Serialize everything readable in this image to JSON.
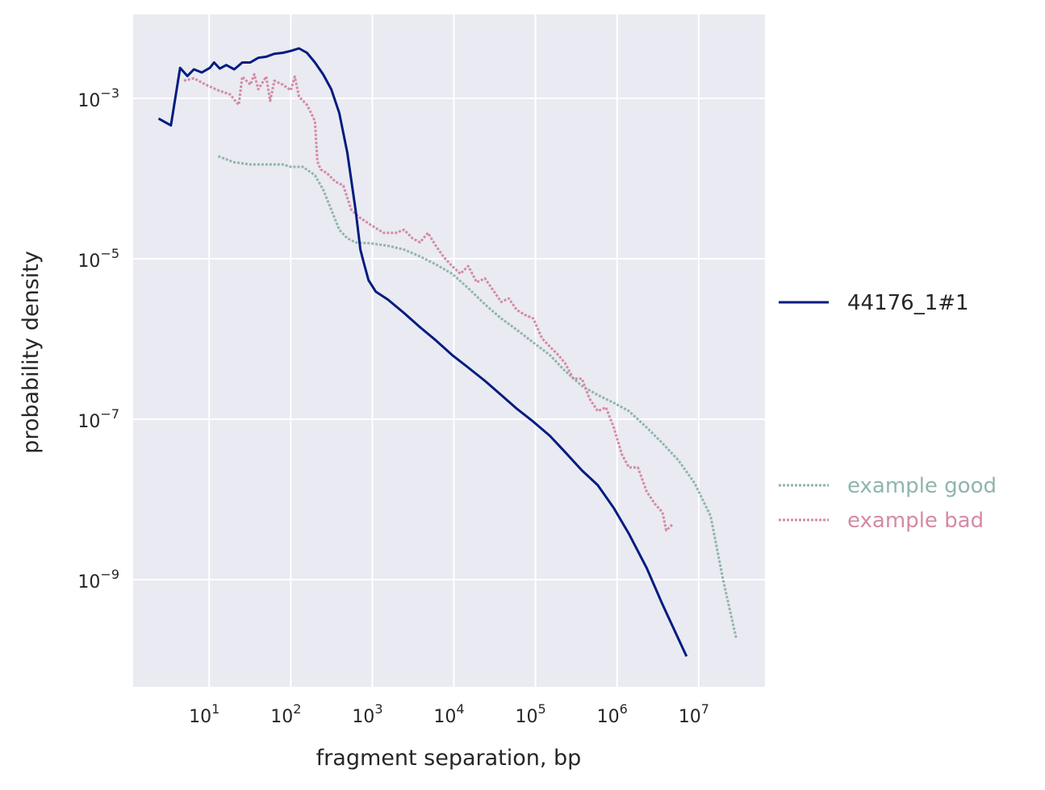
{
  "chart_data": {
    "type": "line",
    "xlabel": "fragment separation, bp",
    "ylabel": "probability density",
    "xscale": "log",
    "yscale": "log",
    "xlim": [
      1.17,
      65000000
    ],
    "ylim": [
      4.6e-11,
      0.0111
    ],
    "grid": true,
    "legend_placement": "right-outside",
    "x_ticks": [
      {
        "base": "10",
        "exp": "1",
        "value": 10
      },
      {
        "base": "10",
        "exp": "2",
        "value": 100
      },
      {
        "base": "10",
        "exp": "3",
        "value": 1000
      },
      {
        "base": "10",
        "exp": "4",
        "value": 10000
      },
      {
        "base": "10",
        "exp": "5",
        "value": 100000
      },
      {
        "base": "10",
        "exp": "6",
        "value": 1000000
      },
      {
        "base": "10",
        "exp": "7",
        "value": 10000000
      }
    ],
    "y_ticks": [
      {
        "base": "10",
        "exp": "−3",
        "value": 0.001
      },
      {
        "base": "10",
        "exp": "−5",
        "value": 1e-05
      },
      {
        "base": "10",
        "exp": "−7",
        "value": 1e-07
      },
      {
        "base": "10",
        "exp": "−9",
        "value": 1e-09
      }
    ],
    "series": [
      {
        "name": "44176_1#1",
        "color": "#001c7f",
        "style": "solid",
        "x": [
          2.4,
          3.4,
          4.4,
          5.4,
          6.5,
          8.1,
          10.2,
          11.5,
          13.5,
          16.2,
          20.3,
          25.5,
          31.9,
          40,
          50,
          63,
          80,
          100,
          126,
          158,
          198,
          249,
          314,
          393,
          494,
          622,
          714,
          782,
          898,
          1100,
          1550,
          2450,
          3840,
          6000,
          9500,
          15000,
          24000,
          38000,
          59000,
          94000,
          150000,
          230000,
          370000,
          580000,
          910000,
          1400000,
          2300000,
          3600000,
          7100000
        ],
        "y": [
          0.00056,
          0.00046,
          0.0024,
          0.0019,
          0.0023,
          0.0021,
          0.0024,
          0.0028,
          0.00235,
          0.0026,
          0.0023,
          0.0028,
          0.0028,
          0.0032,
          0.0033,
          0.0036,
          0.0037,
          0.0039,
          0.0042,
          0.0037,
          0.0028,
          0.002,
          0.0013,
          0.00066,
          0.00021,
          4.1e-05,
          1.3e-05,
          9.1e-06,
          5.4e-06,
          3.9e-06,
          3.1e-06,
          2.1e-06,
          1.4e-06,
          9.6e-07,
          6.3e-07,
          4.4e-07,
          3e-07,
          2e-07,
          1.35e-07,
          9.3e-08,
          6.2e-08,
          3.9e-08,
          2.3e-08,
          1.5e-08,
          7.8e-09,
          3.7e-09,
          1.4e-09,
          4.9e-10,
          1.1e-10
        ]
      },
      {
        "name": "example good",
        "color": "#8fb5ad",
        "style": "dotted",
        "x": [
          12.9,
          20,
          32,
          50,
          80,
          100,
          141,
          198,
          249,
          314,
          393,
          494,
          622,
          980,
          1550,
          2450,
          3840,
          6000,
          9500,
          15000,
          24000,
          38000,
          59000,
          94000,
          150000,
          230000,
          370000,
          580000,
          910000,
          1400000,
          2300000,
          3600000,
          5600000,
          8900000,
          14000000,
          20000000,
          29000000
        ],
        "y": [
          0.00019,
          0.00016,
          0.00015,
          0.00015,
          0.00015,
          0.00014,
          0.00014,
          0.00011,
          7.3e-05,
          4.1e-05,
          2.3e-05,
          1.8e-05,
          1.6e-05,
          1.55e-05,
          1.45e-05,
          1.3e-05,
          1.07e-05,
          8.5e-06,
          6.5e-06,
          4.3e-06,
          2.7e-06,
          1.8e-06,
          1.3e-06,
          9e-07,
          6.3e-07,
          4e-07,
          2.6e-07,
          2e-07,
          1.6e-07,
          1.26e-07,
          7.9e-08,
          5e-08,
          3.1e-08,
          1.6e-08,
          6.2e-09,
          9.8e-10,
          1.8e-10
        ]
      },
      {
        "name": "example bad",
        "color": "#d48aa6",
        "style": "dotted",
        "x": [
          4.9,
          6.5,
          9.1,
          12.9,
          18,
          23,
          25.5,
          32,
          35.7,
          40,
          50,
          56,
          63,
          80,
          100,
          112,
          126,
          158,
          177,
          198,
          212,
          233,
          280,
          350,
          440,
          550,
          690,
          980,
          1380,
          1950,
          2450,
          3100,
          3840,
          4800,
          6000,
          7600,
          9500,
          12000,
          15000,
          19000,
          24000,
          30000,
          38000,
          47000,
          59000,
          74000,
          94000,
          120000,
          150000,
          190000,
          230000,
          290000,
          370000,
          460000,
          580000,
          730000,
          910000,
          1150000,
          1400000,
          1800000,
          2300000,
          2900000,
          3600000,
          4000000,
          4800000
        ],
        "y": [
          0.00166,
          0.00178,
          0.00148,
          0.00126,
          0.00112,
          0.00083,
          0.00187,
          0.00148,
          0.002,
          0.0013,
          0.00187,
          0.00093,
          0.00166,
          0.00148,
          0.00126,
          0.00187,
          0.00105,
          0.00083,
          0.00066,
          0.00052,
          0.000164,
          0.00013,
          0.000116,
          9.2e-05,
          8.2e-05,
          4.1e-05,
          3.3e-05,
          2.6e-05,
          2.1e-05,
          2.1e-05,
          2.3e-05,
          1.8e-05,
          1.6e-05,
          2.1e-05,
          1.45e-05,
          1.03e-05,
          8.1e-06,
          6.5e-06,
          8.1e-06,
          5.1e-06,
          5.7e-06,
          4.1e-06,
          2.9e-06,
          3.2e-06,
          2.3e-06,
          2e-06,
          1.8e-06,
          1.02e-06,
          8e-07,
          6.3e-07,
          5e-07,
          3.2e-07,
          3.2e-07,
          1.8e-07,
          1.26e-07,
          1.4e-07,
          7.9e-08,
          3.6e-08,
          2.5e-08,
          2.5e-08,
          1.26e-08,
          8.8e-09,
          6.9e-09,
          4.1e-09,
          4.9e-09
        ]
      }
    ]
  }
}
